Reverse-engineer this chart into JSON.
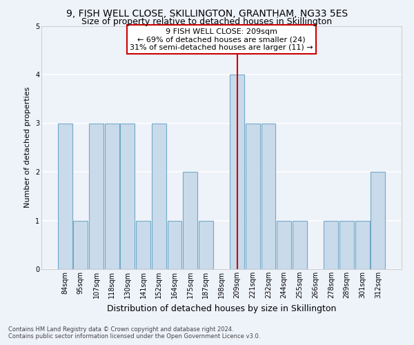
{
  "title": "9, FISH WELL CLOSE, SKILLINGTON, GRANTHAM, NG33 5ES",
  "subtitle": "Size of property relative to detached houses in Skillington",
  "xlabel": "Distribution of detached houses by size in Skillington",
  "ylabel": "Number of detached properties",
  "categories": [
    "84sqm",
    "95sqm",
    "107sqm",
    "118sqm",
    "130sqm",
    "141sqm",
    "152sqm",
    "164sqm",
    "175sqm",
    "187sqm",
    "198sqm",
    "209sqm",
    "221sqm",
    "232sqm",
    "244sqm",
    "255sqm",
    "266sqm",
    "278sqm",
    "289sqm",
    "301sqm",
    "312sqm"
  ],
  "values": [
    3,
    1,
    3,
    3,
    3,
    1,
    3,
    1,
    2,
    1,
    0,
    4,
    3,
    3,
    1,
    1,
    0,
    1,
    1,
    1,
    2
  ],
  "highlight_index": 11,
  "bar_color": "#c9daea",
  "bar_edge_color": "#6fa8c8",
  "highlight_line_color": "#cc0000",
  "background_color": "#eef2f9",
  "grid_color": "#ffffff",
  "ylim": [
    0,
    5
  ],
  "yticks": [
    0,
    1,
    2,
    3,
    4,
    5
  ],
  "annotation_text": "9 FISH WELL CLOSE: 209sqm\n← 69% of detached houses are smaller (24)\n31% of semi-detached houses are larger (11) →",
  "annotation_box_color": "#ffffff",
  "annotation_box_edge_color": "#cc0000",
  "footer_text": "Contains HM Land Registry data © Crown copyright and database right 2024.\nContains public sector information licensed under the Open Government Licence v3.0.",
  "title_fontsize": 10,
  "subtitle_fontsize": 9,
  "tick_fontsize": 7,
  "ylabel_fontsize": 8,
  "xlabel_fontsize": 9,
  "annotation_fontsize": 8
}
